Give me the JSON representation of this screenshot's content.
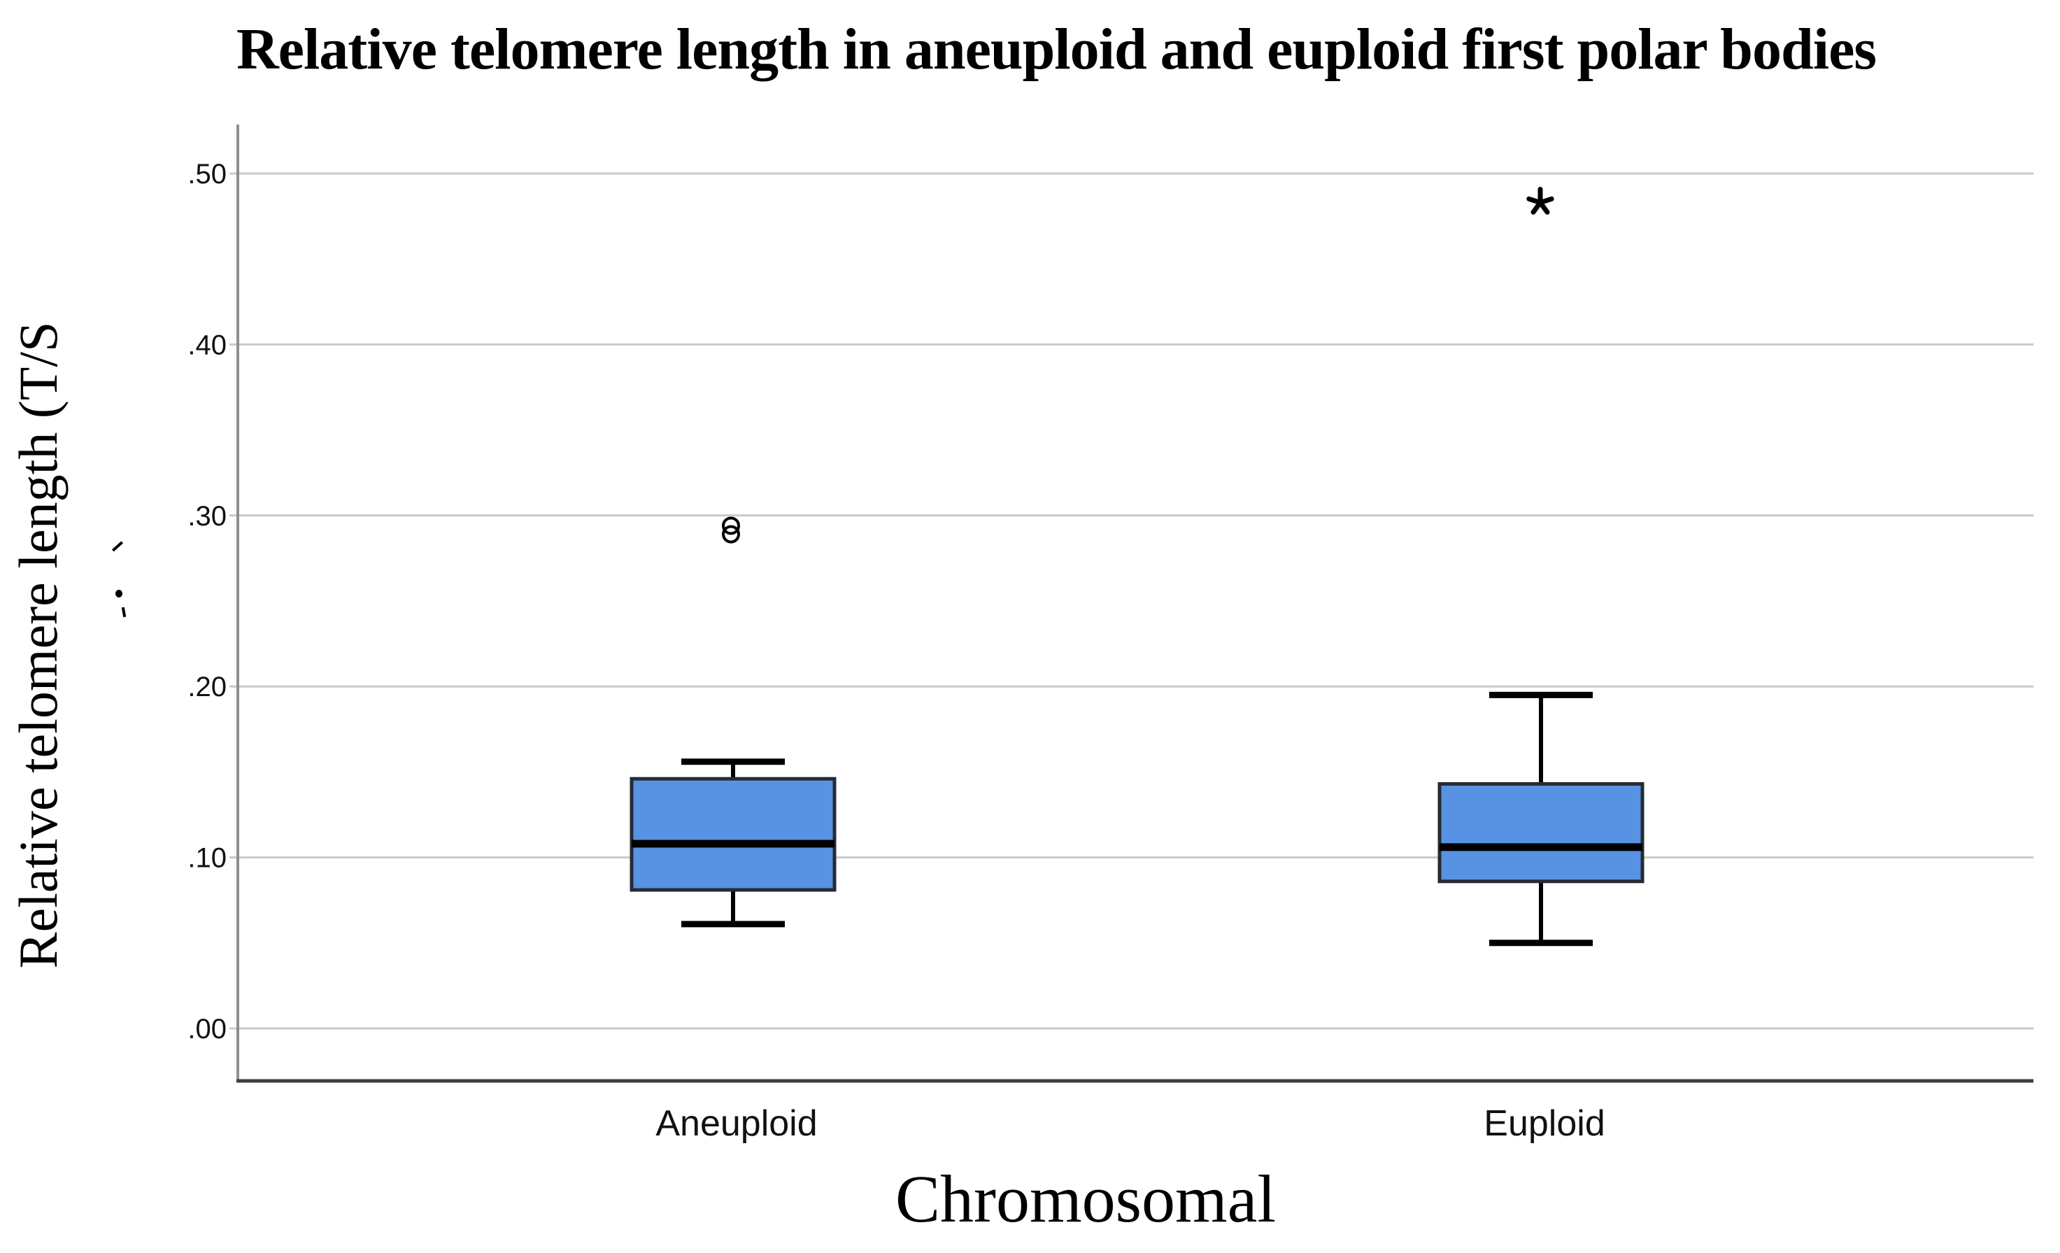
{
  "chart_data": {
    "type": "box",
    "title": "Relative telomere length in aneuploid and euploid first polar bodies",
    "xlabel": "Chromosomal",
    "ylabel": "Relative telomere length (T/S",
    "categories": [
      "Aneuploid",
      "Euploid"
    ],
    "y_ticks": [
      ".00",
      ".10",
      ".20",
      ".30",
      ".40",
      ".50"
    ],
    "y_tick_values": [
      0,
      0.1,
      0.2,
      0.3,
      0.4,
      0.5
    ],
    "ylim": [
      -0.031,
      0.529
    ],
    "grid": "horizontal-only",
    "legend": "none",
    "series": [
      {
        "name": "Aneuploid",
        "whisker_low": 0.061,
        "q1": 0.081,
        "median": 0.108,
        "q3": 0.146,
        "whisker_high": 0.156,
        "outliers": [
          0.289,
          0.294
        ],
        "extremes": []
      },
      {
        "name": "Euploid",
        "whisker_low": 0.05,
        "q1": 0.086,
        "median": 0.106,
        "q3": 0.143,
        "whisker_high": 0.195,
        "outliers": [],
        "extremes": [
          0.483
        ]
      }
    ],
    "colors": {
      "box_fill": "#5793E2",
      "box_border": "#262B33",
      "median": "#000000",
      "whisker": "#000000",
      "outlier": "#000000",
      "grid": "#C9C9C9",
      "y_axis": "#8F8F8F",
      "x_axis": "#3C3C3C",
      "text": "#000000"
    }
  }
}
